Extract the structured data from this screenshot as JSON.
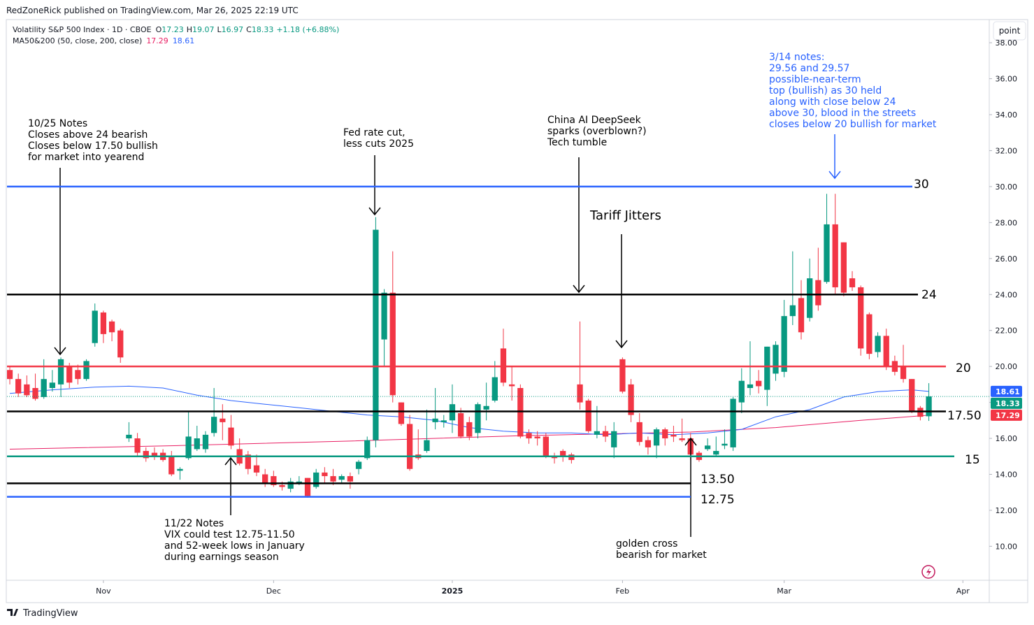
{
  "header": {
    "published": "RedZoneRick published on TradingView.com, Mar 26, 2025 22:19 UTC",
    "button": "point",
    "brand": "TradingView"
  },
  "chart_data": {
    "type": "candlestick",
    "title": "Volatility S&P 500 Index · 1D · CBOE",
    "ohlc_letters": [
      "O",
      "H",
      "L",
      "C"
    ],
    "change_label": "+1.18 (+6.88%)",
    "indicator_label": "MA50&200 (50, close, 200, close)",
    "up_color": "#089981",
    "down_color": "#f23645",
    "xlim": [
      -0.33,
      115.1
    ],
    "xticks": [
      {
        "value": 11,
        "label": "Nov"
      },
      {
        "value": 31,
        "label": "Dec"
      },
      {
        "value": 52,
        "label": "2025"
      },
      {
        "value": 72,
        "label": "Feb"
      },
      {
        "value": 91,
        "label": "Mar"
      },
      {
        "value": 112,
        "label": "Apr"
      }
    ],
    "ylim": [
      8.11,
      39.21
    ],
    "yticks": [
      {
        "value": 10,
        "label": "10.00"
      },
      {
        "value": 12,
        "label": "12.00"
      },
      {
        "value": 14,
        "label": "14.00"
      },
      {
        "value": 16,
        "label": "16.00"
      },
      {
        "value": 18,
        "label": "18.00"
      },
      {
        "value": 20,
        "label": "20.00"
      },
      {
        "value": 22,
        "label": "22.00"
      },
      {
        "value": 24,
        "label": "24.00"
      },
      {
        "value": 26,
        "label": "26.00"
      },
      {
        "value": 28,
        "label": "28.00"
      },
      {
        "value": 30,
        "label": "30.00"
      },
      {
        "value": 32,
        "label": "32.00"
      },
      {
        "value": 34,
        "label": "34.00"
      },
      {
        "value": 36,
        "label": "36.00"
      },
      {
        "value": 38,
        "label": "38.00"
      }
    ],
    "open": [
      19.8,
      19.3,
      19.0,
      18.8,
      18.3,
      18.8,
      19.0,
      20.0,
      19.8,
      19.3,
      21.3,
      23.0,
      22.5,
      22.0,
      16.0,
      16.0,
      15.3,
      15.2,
      15.2,
      15.0,
      14.2,
      14.9,
      15.4,
      15.4,
      16.3,
      17.1,
      16.6,
      15.4,
      15.1,
      14.5,
      14.0,
      13.9,
      13.4,
      13.2,
      13.5,
      13.8,
      13.3,
      14.1,
      13.9,
      13.7,
      13.9,
      14.3,
      14.9,
      15.9,
      21.5,
      24.1,
      18.0,
      16.8,
      15.1,
      15.3,
      16.9,
      16.9,
      17.0,
      17.4,
      16.9,
      16.3,
      17.6,
      18.1,
      21.0,
      19.0,
      18.8,
      16.3,
      16.1,
      16.1,
      15.0,
      15.3,
      15.1,
      19.0,
      18.1,
      16.2,
      16.4,
      15.5,
      20.4,
      19.0,
      16.9,
      15.9,
      15.6,
      16.5,
      16.2,
      16.0,
      16.0,
      15.2,
      15.4,
      15.1,
      15.6,
      15.5,
      18.0,
      18.8,
      19.2,
      18.7,
      19.6,
      19.7,
      22.8,
      23.8,
      22.7,
      24.8,
      24.7,
      27.9,
      26.9,
      24.9,
      24.4,
      22.9,
      20.8,
      21.7,
      20.3,
      20.0,
      19.3,
      17.7,
      17.23
    ],
    "high": [
      20.0,
      19.6,
      19.5,
      19.6,
      20.4,
      19.8,
      20.5,
      20.2,
      20.1,
      20.4,
      23.5,
      23.1,
      22.6,
      22.1,
      16.9,
      16.3,
      15.5,
      15.5,
      15.4,
      15.3,
      14.4,
      17.5,
      16.7,
      16.4,
      18.8,
      17.9,
      17.3,
      16.0,
      15.3,
      15.1,
      14.3,
      14.2,
      13.6,
      13.8,
      13.9,
      13.8,
      14.3,
      14.4,
      14.3,
      14.0,
      14.1,
      14.8,
      16.1,
      28.3,
      24.3,
      26.4,
      18.0,
      17.3,
      16.5,
      17.6,
      18.8,
      17.3,
      19.0,
      17.7,
      17.2,
      18.0,
      19.1,
      20.3,
      22.1,
      20.0,
      19.0,
      16.5,
      16.4,
      16.3,
      15.2,
      15.4,
      15.2,
      22.5,
      18.2,
      17.8,
      16.7,
      16.9,
      20.5,
      19.3,
      17.4,
      16.1,
      16.6,
      16.6,
      16.7,
      17.1,
      16.3,
      15.3,
      16.0,
      16.1,
      16.5,
      18.3,
      19.9,
      21.4,
      19.8,
      21.1,
      21.4,
      23.7,
      26.4,
      24.8,
      26.0,
      26.6,
      29.6,
      29.6,
      26.9,
      25.3,
      24.5,
      23.0,
      21.9,
      22.1,
      20.6,
      21.2,
      19.3,
      17.8,
      19.07
    ],
    "low": [
      19.0,
      18.3,
      18.3,
      18.1,
      18.2,
      18.6,
      18.3,
      18.8,
      19.0,
      19.2,
      21.1,
      21.3,
      21.4,
      20.2,
      15.8,
      15.0,
      14.7,
      14.8,
      14.7,
      13.9,
      13.7,
      14.8,
      15.3,
      15.2,
      16.1,
      15.9,
      15.4,
      14.5,
      14.0,
      13.9,
      13.3,
      13.3,
      13.1,
      13.0,
      13.4,
      12.7,
      13.2,
      13.5,
      13.4,
      13.5,
      13.2,
      14.0,
      14.8,
      15.5,
      20.0,
      18.0,
      16.7,
      14.2,
      14.8,
      15.2,
      16.5,
      16.6,
      16.3,
      16.0,
      15.9,
      16.0,
      17.0,
      18.0,
      18.9,
      18.1,
      16.0,
      15.7,
      15.6,
      14.9,
      14.6,
      14.7,
      14.6,
      17.6,
      16.3,
      16.0,
      15.8,
      14.9,
      18.5,
      16.9,
      15.6,
      15.1,
      14.9,
      15.6,
      15.8,
      15.8,
      14.8,
      14.7,
      15.3,
      15.0,
      15.4,
      15.3,
      17.4,
      18.4,
      18.5,
      17.8,
      19.2,
      19.4,
      22.3,
      21.5,
      22.5,
      23.1,
      24.6,
      24.0,
      23.9,
      24.2,
      20.6,
      20.4,
      20.5,
      19.8,
      19.5,
      19.1,
      17.4,
      17.0,
      16.97
    ],
    "close": [
      19.3,
      18.5,
      18.4,
      18.2,
      19.3,
      19.1,
      20.4,
      19.1,
      19.3,
      20.3,
      23.1,
      21.8,
      21.9,
      20.5,
      16.2,
      15.2,
      14.9,
      15.0,
      14.8,
      14.0,
      14.3,
      16.1,
      16.0,
      16.2,
      17.2,
      16.9,
      15.6,
      14.6,
      14.3,
      14.1,
      13.5,
      13.4,
      13.3,
      13.6,
      13.6,
      12.8,
      14.1,
      13.9,
      13.6,
      13.9,
      13.6,
      14.7,
      15.9,
      27.6,
      24.1,
      18.4,
      16.8,
      14.3,
      14.9,
      15.9,
      17.1,
      17.0,
      17.9,
      16.1,
      16.1,
      17.9,
      17.8,
      19.4,
      19.1,
      18.9,
      16.1,
      16.0,
      16.0,
      15.0,
      14.9,
      15.0,
      14.8,
      18.0,
      16.4,
      16.4,
      16.1,
      16.4,
      18.6,
      17.3,
      15.8,
      15.5,
      16.5,
      16.0,
      16.1,
      15.9,
      15.1,
      14.8,
      15.6,
      15.3,
      15.7,
      18.2,
      19.2,
      19.0,
      18.9,
      21.1,
      21.2,
      22.8,
      23.4,
      21.9,
      24.9,
      23.4,
      27.9,
      24.4,
      24.1,
      24.4,
      21.0,
      20.7,
      21.7,
      20.0,
      19.7,
      19.3,
      17.5,
      17.2,
      18.33
    ],
    "series": [
      {
        "color": "#e91e63",
        "x": [
          0,
          20,
          40,
          60,
          80,
          90,
          100,
          108
        ],
        "values": [
          15.4,
          15.6,
          15.85,
          16.15,
          16.35,
          16.6,
          17.0,
          17.29
        ]
      },
      {
        "color": "#2962ff",
        "x": [
          0,
          5,
          10,
          14,
          18,
          22,
          26,
          30,
          34,
          38,
          42,
          46,
          50,
          54,
          58,
          62,
          66,
          70,
          74,
          78,
          82,
          86,
          90,
          94,
          98,
          102,
          106,
          108
        ],
        "values": [
          18.5,
          18.7,
          18.85,
          18.9,
          18.8,
          18.4,
          18.1,
          17.9,
          17.7,
          17.5,
          17.3,
          17.2,
          17.0,
          16.6,
          16.4,
          16.3,
          16.3,
          16.2,
          16.3,
          16.2,
          16.3,
          16.5,
          17.2,
          17.6,
          18.3,
          18.6,
          18.7,
          18.61
        ]
      }
    ],
    "levels": [
      {
        "value": 30,
        "label": "30",
        "color": "#2962ff"
      },
      {
        "value": 24,
        "label": "24",
        "color": "#000000"
      },
      {
        "value": 20,
        "label": "20",
        "color": "#f23645"
      },
      {
        "value": 17.5,
        "label": "17.50",
        "color": "#000000"
      },
      {
        "value": 15,
        "label": "15",
        "color": "#089981"
      },
      {
        "value": 13.5,
        "label": "13.50",
        "color": "#000000"
      },
      {
        "value": 12.75,
        "label": "12.75",
        "color": "#2962ff"
      }
    ],
    "annotations": [
      {
        "lines": [
          "10/25 Notes",
          "Closes above 24 bearish",
          "Closes below 17.50 bullish",
          "for market into yearend"
        ],
        "color": "#000000"
      },
      {
        "lines": [
          "Fed rate cut,",
          "less cuts 2025"
        ],
        "color": "#000000"
      },
      {
        "lines": [
          "China AI DeepSeek",
          "sparks (overblown?)",
          "Tech tumble"
        ],
        "color": "#000000"
      },
      {
        "lines": [
          "Tariff Jitters"
        ],
        "color": "#000000"
      },
      {
        "lines": [
          "3/14 notes:",
          "29.56 and 29.57",
          "possible-near-term",
          "top (bullish) as 30 held",
          "along with close below 24",
          "above 30, blood in the streets",
          "closes below 20 bullish for market"
        ],
        "color": "#2962ff"
      },
      {
        "lines": [
          "11/22 Notes",
          "VIX could test 12.75-11.50",
          "and 52-week lows in January",
          "during earnings season"
        ],
        "color": "#000000"
      },
      {
        "lines": [
          "golden cross",
          "bearish for market"
        ],
        "color": "#000000"
      }
    ]
  }
}
